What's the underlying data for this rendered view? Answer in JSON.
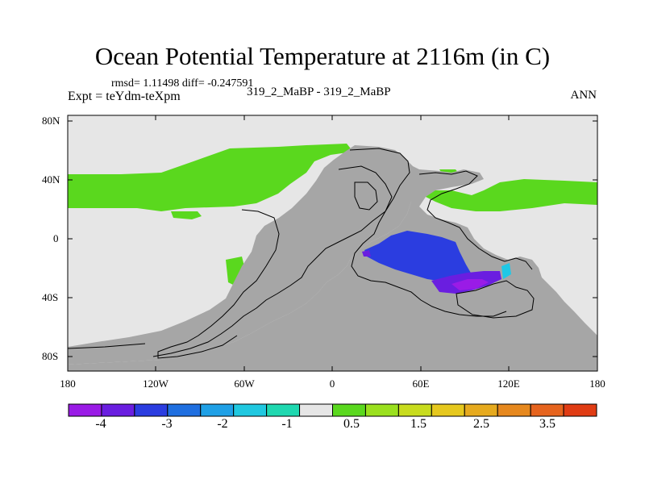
{
  "title": "Ocean Potential Temperature at 2116m (in C)",
  "stats": "rmsd= 1.11498 diff= -0.247591",
  "expt": "Expt = teYdm-teXpm",
  "cases": "319_2_MaBP - 319_2_MaBP",
  "season": "ANN",
  "lat_labels": [
    "80N",
    "40N",
    "0",
    "40S",
    "80S"
  ],
  "lon_labels": [
    "180",
    "120W",
    "60W",
    "0",
    "60E",
    "120E",
    "180"
  ],
  "colorbar": {
    "labels": [
      "-4",
      "-3",
      "-2",
      "-1",
      "0.5",
      "1.5",
      "2.5",
      "3.5"
    ],
    "colors": [
      "#9a1be6",
      "#6a1ee0",
      "#2b3de0",
      "#1f6fe0",
      "#1fa0e6",
      "#20c8e0",
      "#1fd8b0",
      "#e6e6e6",
      "#5ad81e",
      "#9ae01e",
      "#c8dc1e",
      "#e6c81e",
      "#e6aa1e",
      "#e6881e",
      "#e6641e",
      "#e03c14"
    ]
  },
  "colors": {
    "land": "#a6a6a6",
    "ocean_zero": "#e6e6e6",
    "green": "#5ad81e",
    "blue": "#2b3de0",
    "purple": "#6a1ee0",
    "violet": "#9a1be6",
    "cyan": "#1fc8e6"
  }
}
